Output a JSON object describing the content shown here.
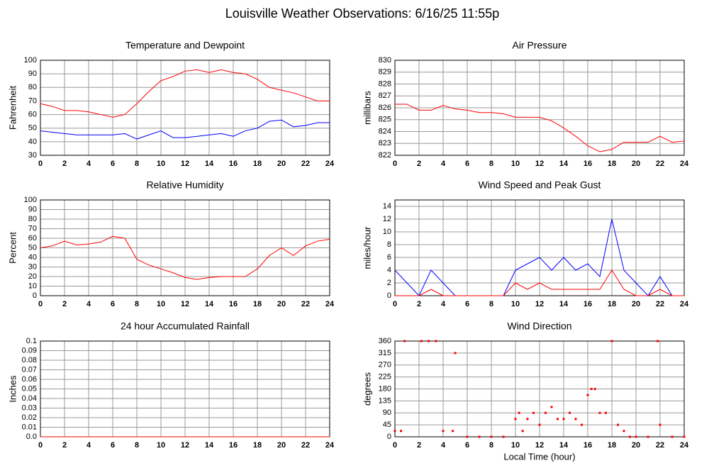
{
  "title": "Louisville Weather Observations: 6/16/25 11:55p",
  "chart_data": [
    {
      "type": "line",
      "title": "Temperature and Dewpoint",
      "ylabel": "Fahrenheit",
      "x": [
        0,
        1,
        2,
        3,
        4,
        5,
        6,
        7,
        8,
        9,
        10,
        11,
        12,
        13,
        14,
        15,
        16,
        17,
        18,
        19,
        20,
        21,
        22,
        23,
        24
      ],
      "series": [
        {
          "color": "#ff0000",
          "values": [
            68,
            66,
            63,
            63,
            62,
            60,
            58,
            60,
            68,
            77,
            85,
            88,
            92,
            93,
            91,
            93,
            91,
            90,
            86,
            80,
            78,
            76,
            73,
            70,
            70
          ]
        },
        {
          "color": "#0000ff",
          "values": [
            48,
            47,
            46,
            45,
            45,
            45,
            45,
            46,
            42,
            45,
            48,
            43,
            43,
            44,
            45,
            46,
            44,
            48,
            50,
            55,
            56,
            51,
            52,
            54,
            54
          ]
        }
      ],
      "xlim": [
        0,
        24
      ],
      "ylim": [
        30,
        100
      ],
      "xticks": [
        0,
        2,
        4,
        6,
        8,
        10,
        12,
        14,
        16,
        18,
        20,
        22,
        24
      ],
      "yticks": [
        30,
        40,
        50,
        60,
        70,
        80,
        90,
        100
      ],
      "grid": true
    },
    {
      "type": "line",
      "title": "Air Pressure",
      "ylabel": "millibars",
      "x": [
        0,
        1,
        2,
        3,
        4,
        5,
        6,
        7,
        8,
        9,
        10,
        11,
        12,
        13,
        14,
        15,
        16,
        17,
        18,
        19,
        20,
        21,
        22,
        23,
        24
      ],
      "series": [
        {
          "color": "#ff0000",
          "values": [
            826.3,
            826.3,
            825.8,
            825.8,
            826.2,
            825.9,
            825.8,
            825.6,
            825.6,
            825.5,
            825.2,
            825.2,
            825.2,
            824.9,
            824.3,
            823.6,
            822.8,
            822.3,
            822.5,
            823.1,
            823.1,
            823.1,
            823.6,
            823.1,
            823.2
          ]
        }
      ],
      "xlim": [
        0,
        24
      ],
      "ylim": [
        822,
        830
      ],
      "xticks": [
        0,
        2,
        4,
        6,
        8,
        10,
        12,
        14,
        16,
        18,
        20,
        22,
        24
      ],
      "yticks": [
        822,
        823,
        824,
        825,
        826,
        827,
        828,
        829,
        830
      ],
      "grid": true
    },
    {
      "type": "line",
      "title": "Relative Humidity",
      "ylabel": "Percent",
      "x": [
        0,
        1,
        2,
        3,
        4,
        5,
        6,
        7,
        8,
        9,
        10,
        11,
        12,
        13,
        14,
        15,
        16,
        17,
        18,
        19,
        20,
        21,
        22,
        23,
        24
      ],
      "series": [
        {
          "color": "#ff0000",
          "values": [
            50,
            52,
            57,
            53,
            54,
            56,
            62,
            60,
            38,
            32,
            28,
            24,
            19,
            17,
            19,
            20,
            20,
            20,
            28,
            42,
            50,
            42,
            52,
            57,
            59
          ]
        }
      ],
      "xlim": [
        0,
        24
      ],
      "ylim": [
        0,
        100
      ],
      "xticks": [
        0,
        2,
        4,
        6,
        8,
        10,
        12,
        14,
        16,
        18,
        20,
        22,
        24
      ],
      "yticks": [
        0,
        10,
        20,
        30,
        40,
        50,
        60,
        70,
        80,
        90,
        100
      ],
      "grid": true
    },
    {
      "type": "line",
      "title": "Wind Speed and Peak Gust",
      "ylabel": "miles/hour",
      "x": [
        0,
        1,
        2,
        3,
        4,
        5,
        6,
        7,
        8,
        9,
        10,
        11,
        12,
        13,
        14,
        15,
        16,
        17,
        18,
        19,
        20,
        21,
        22,
        23,
        24
      ],
      "series": [
        {
          "color": "#0000ff",
          "values": [
            4,
            2,
            0,
            4,
            2,
            0,
            0,
            0,
            0,
            0,
            4,
            5,
            6,
            4,
            6,
            4,
            5,
            3,
            12,
            4,
            2,
            0,
            3,
            0,
            0
          ]
        },
        {
          "color": "#ff0000",
          "values": [
            0,
            0,
            0,
            1,
            0,
            0,
            0,
            0,
            0,
            0,
            2,
            1,
            2,
            1,
            1,
            1,
            1,
            1,
            4,
            1,
            0,
            0,
            1,
            0,
            0
          ]
        }
      ],
      "xlim": [
        0,
        24
      ],
      "ylim": [
        0,
        15
      ],
      "xticks": [
        0,
        2,
        4,
        6,
        8,
        10,
        12,
        14,
        16,
        18,
        20,
        22,
        24
      ],
      "yticks": [
        0,
        2,
        4,
        6,
        8,
        10,
        12,
        14
      ],
      "grid": true
    },
    {
      "type": "line",
      "title": "24 hour Accumulated Rainfall",
      "ylabel": "Inches",
      "x": [
        0,
        1,
        2,
        3,
        4,
        5,
        6,
        7,
        8,
        9,
        10,
        11,
        12,
        13,
        14,
        15,
        16,
        17,
        18,
        19,
        20,
        21,
        22,
        23,
        24
      ],
      "series": [
        {
          "color": "#ff0000",
          "values": [
            0,
            0,
            0,
            0,
            0,
            0,
            0,
            0,
            0,
            0,
            0,
            0,
            0,
            0,
            0,
            0,
            0,
            0,
            0,
            0,
            0,
            0,
            0,
            0,
            0
          ]
        }
      ],
      "xlim": [
        0,
        24
      ],
      "ylim": [
        0,
        0.1
      ],
      "xticks": [
        0,
        2,
        4,
        6,
        8,
        10,
        12,
        14,
        16,
        18,
        20,
        22,
        24
      ],
      "yticks": [
        {
          "value": 0,
          "label": "0.0"
        },
        0.01,
        0.02,
        0.03,
        0.04,
        0.05,
        0.06,
        0.07,
        0.08,
        0.09,
        0.1
      ],
      "grid": true
    },
    {
      "type": "scatter",
      "title": "Wind Direction",
      "ylabel": "degrees",
      "xlabel": "Local Time (hour)",
      "x": [
        0,
        0.5,
        0.8,
        2.2,
        2.8,
        3.4,
        4,
        4.8,
        5,
        6,
        7,
        8,
        9,
        10,
        10.3,
        10.6,
        11,
        11.5,
        12,
        12.5,
        13,
        13.5,
        14,
        14.5,
        15,
        15.5,
        16,
        16.3,
        16.6,
        17,
        17.5,
        18,
        18.5,
        19,
        19.5,
        20,
        21,
        21.8,
        22,
        23,
        24
      ],
      "series": [
        {
          "color": "#ff0000",
          "values": [
            22,
            22,
            360,
            360,
            360,
            360,
            22,
            22,
            315,
            0,
            0,
            0,
            0,
            67,
            90,
            22,
            67,
            90,
            45,
            90,
            112,
            67,
            67,
            90,
            67,
            45,
            157,
            180,
            180,
            90,
            90,
            360,
            45,
            22,
            0,
            0,
            0,
            360,
            45,
            0,
            0
          ]
        }
      ],
      "xlim": [
        0,
        24
      ],
      "ylim": [
        0,
        360
      ],
      "xticks": [
        0,
        2,
        4,
        6,
        8,
        10,
        12,
        14,
        16,
        18,
        20,
        22,
        24
      ],
      "yticks": [
        0,
        45,
        90,
        135,
        180,
        225,
        270,
        315,
        360
      ],
      "grid": true
    }
  ]
}
